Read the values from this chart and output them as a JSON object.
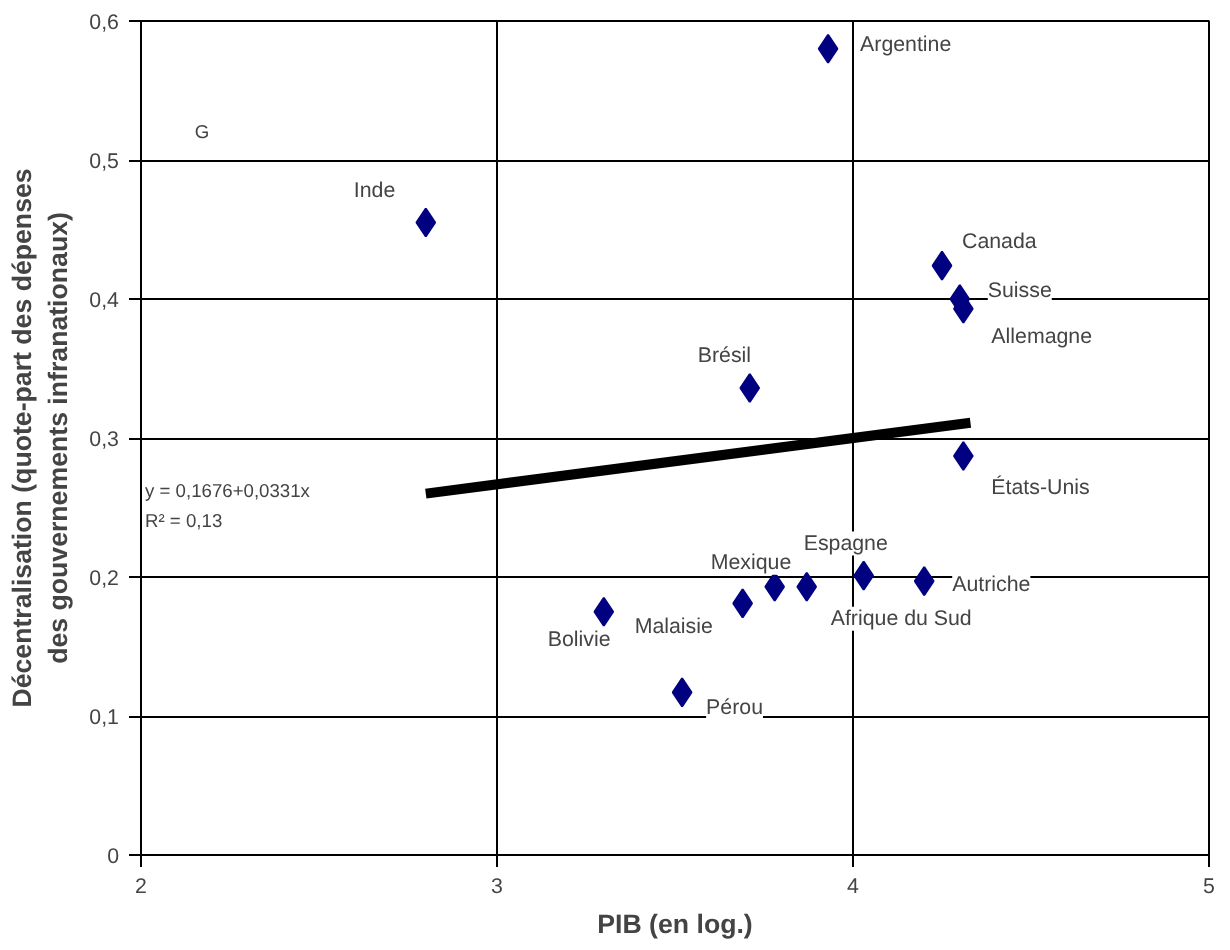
{
  "chart_data": {
    "type": "scatter",
    "xlabel": "PIB (en log.)",
    "ylabel": "Décentralisation (quote-part des dépenses des gouvernements infranationaux)",
    "xlim": [
      2,
      5
    ],
    "ylim": [
      0,
      0.6
    ],
    "xticks": [
      2,
      3,
      4,
      5
    ],
    "yticks": [
      0,
      {
        "value": 0.1,
        "label": "0,1"
      },
      {
        "value": 0.2,
        "label": "0,2"
      },
      {
        "value": 0.3,
        "label": "0,3"
      },
      {
        "value": 0.4,
        "label": "0,4"
      },
      {
        "value": 0.5,
        "label": "0,5"
      },
      {
        "value": 0.6,
        "label": "0,6"
      }
    ],
    "grid": true,
    "marker": "diamond",
    "series": [
      {
        "name": "Argentine",
        "color": "#000080",
        "x": [
          3.93
        ],
        "values": [
          0.58
        ]
      },
      {
        "name": "Inde",
        "color": "#000080",
        "x": [
          2.8
        ],
        "values": [
          0.455
        ]
      },
      {
        "name": "Canada",
        "color": "#000080",
        "x": [
          4.25
        ],
        "values": [
          0.424
        ]
      },
      {
        "name": "Suisse",
        "color": "#000080",
        "x": [
          4.3
        ],
        "values": [
          0.4
        ]
      },
      {
        "name": "Allemagne",
        "color": "#000080",
        "x": [
          4.31
        ],
        "values": [
          0.393
        ]
      },
      {
        "name": "Brésil",
        "color": "#000080",
        "x": [
          3.71
        ],
        "values": [
          0.336
        ]
      },
      {
        "name": "États-Unis",
        "color": "#000080",
        "x": [
          4.31
        ],
        "values": [
          0.287
        ]
      },
      {
        "name": "Espagne",
        "color": "#000080",
        "x": [
          4.03
        ],
        "values": [
          0.201
        ]
      },
      {
        "name": "Autriche",
        "color": "#000080",
        "x": [
          4.2
        ],
        "values": [
          0.197
        ]
      },
      {
        "name": "Mexique",
        "color": "#000080",
        "x": [
          3.78
        ],
        "values": [
          0.193
        ]
      },
      {
        "name": "Afrique du Sud",
        "color": "#000080",
        "x": [
          3.87
        ],
        "values": [
          0.193
        ]
      },
      {
        "name": "Malaisie",
        "color": "#000080",
        "x": [
          3.69
        ],
        "values": [
          0.181
        ]
      },
      {
        "name": "Bolivie",
        "color": "#000080",
        "x": [
          3.3
        ],
        "values": [
          0.175
        ]
      },
      {
        "name": "Pérou",
        "color": "#000080",
        "x": [
          3.52
        ],
        "values": [
          0.117
        ]
      },
      {
        "type": "line",
        "color": "#000000",
        "marker": "none",
        "x": [
          2.8,
          4.33
        ],
        "values": [
          0.26,
          0.311
        ]
      }
    ],
    "annotations": [
      "G",
      "y =  0,1676+0,0331x",
      "R² = 0,13"
    ]
  }
}
